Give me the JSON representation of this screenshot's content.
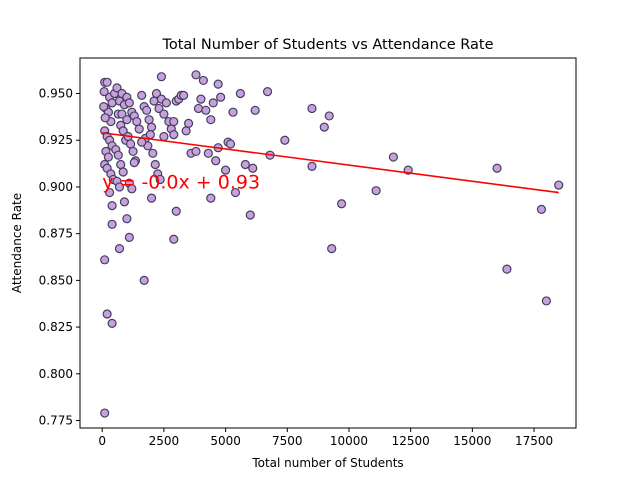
{
  "chart_data": {
    "type": "scatter",
    "title": "Total Number of Students vs Attendance Rate",
    "xlabel": "Total number of Students",
    "ylabel": "Attendance Rate",
    "xlim": [
      -900,
      19200
    ],
    "ylim": [
      0.771,
      0.969
    ],
    "xticks": [
      0,
      2500,
      5000,
      7500,
      10000,
      12500,
      15000,
      17500
    ],
    "xtick_labels": [
      "0",
      "2500",
      "5000",
      "7500",
      "10000",
      "12500",
      "15000",
      "17500"
    ],
    "yticks": [
      0.775,
      0.8,
      0.825,
      0.85,
      0.875,
      0.9,
      0.925,
      0.95
    ],
    "ytick_labels": [
      "0.775",
      "0.800",
      "0.825",
      "0.850",
      "0.875",
      "0.900",
      "0.925",
      "0.950"
    ],
    "grid": false,
    "colors": {
      "marker_fill": "#c9a0dc",
      "marker_edge": "#404060",
      "regression_line": "#ff0000",
      "equation_text": "#ff0000"
    },
    "regression": {
      "equation_label": "y = -0.0x + 0.93",
      "x_range": [
        0,
        18500
      ],
      "y_start": 0.929,
      "y_end": 0.897,
      "label_x": 0,
      "label_y": 0.903
    },
    "points": [
      [
        100,
        0.956
      ],
      [
        200,
        0.956
      ],
      [
        300,
        0.948
      ],
      [
        400,
        0.945
      ],
      [
        150,
        0.942
      ],
      [
        250,
        0.94
      ],
      [
        350,
        0.935
      ],
      [
        100,
        0.93
      ],
      [
        200,
        0.927
      ],
      [
        300,
        0.925
      ],
      [
        400,
        0.922
      ],
      [
        150,
        0.919
      ],
      [
        250,
        0.916
      ],
      [
        100,
        0.912
      ],
      [
        200,
        0.91
      ],
      [
        350,
        0.907
      ],
      [
        450,
        0.904
      ],
      [
        120,
        0.937
      ],
      [
        80,
        0.951
      ],
      [
        60,
        0.943
      ],
      [
        500,
        0.95
      ],
      [
        600,
        0.953
      ],
      [
        700,
        0.946
      ],
      [
        800,
        0.95
      ],
      [
        900,
        0.944
      ],
      [
        650,
        0.939
      ],
      [
        750,
        0.933
      ],
      [
        850,
        0.93
      ],
      [
        950,
        0.925
      ],
      [
        550,
        0.92
      ],
      [
        650,
        0.917
      ],
      [
        750,
        0.912
      ],
      [
        850,
        0.908
      ],
      [
        600,
        0.903
      ],
      [
        700,
        0.9
      ],
      [
        1000,
        0.948
      ],
      [
        1100,
        0.945
      ],
      [
        1200,
        0.94
      ],
      [
        1300,
        0.938
      ],
      [
        1400,
        0.935
      ],
      [
        1500,
        0.931
      ],
      [
        1050,
        0.927
      ],
      [
        1150,
        0.923
      ],
      [
        1250,
        0.919
      ],
      [
        1350,
        0.914
      ],
      [
        1100,
        0.902
      ],
      [
        1200,
        0.899
      ],
      [
        1000,
        0.883
      ],
      [
        1100,
        0.873
      ],
      [
        900,
        0.892
      ],
      [
        1600,
        0.949
      ],
      [
        1700,
        0.943
      ],
      [
        1800,
        0.941
      ],
      [
        1900,
        0.936
      ],
      [
        2000,
        0.932
      ],
      [
        2100,
        0.946
      ],
      [
        2200,
        0.95
      ],
      [
        2300,
        0.942
      ],
      [
        2400,
        0.947
      ],
      [
        2500,
        0.939
      ],
      [
        1750,
        0.926
      ],
      [
        1850,
        0.922
      ],
      [
        1950,
        0.928
      ],
      [
        2050,
        0.918
      ],
      [
        2150,
        0.912
      ],
      [
        2250,
        0.907
      ],
      [
        2350,
        0.904
      ],
      [
        2000,
        0.894
      ],
      [
        1700,
        0.85
      ],
      [
        1600,
        0.924
      ],
      [
        2600,
        0.945
      ],
      [
        2700,
        0.935
      ],
      [
        2800,
        0.931
      ],
      [
        2900,
        0.928
      ],
      [
        3000,
        0.946
      ],
      [
        3100,
        0.947
      ],
      [
        3200,
        0.949
      ],
      [
        3400,
        0.93
      ],
      [
        3500,
        0.934
      ],
      [
        3600,
        0.918
      ],
      [
        3800,
        0.96
      ],
      [
        3900,
        0.942
      ],
      [
        4000,
        0.947
      ],
      [
        4100,
        0.957
      ],
      [
        4200,
        0.941
      ],
      [
        4300,
        0.918
      ],
      [
        4400,
        0.936
      ],
      [
        4500,
        0.945
      ],
      [
        4600,
        0.914
      ],
      [
        4700,
        0.955
      ],
      [
        4800,
        0.948
      ],
      [
        5000,
        0.909
      ],
      [
        5100,
        0.924
      ],
      [
        5200,
        0.923
      ],
      [
        5300,
        0.94
      ],
      [
        5400,
        0.897
      ],
      [
        5600,
        0.95
      ],
      [
        5800,
        0.912
      ],
      [
        6000,
        0.885
      ],
      [
        6100,
        0.91
      ],
      [
        6200,
        0.941
      ],
      [
        6700,
        0.951
      ],
      [
        6800,
        0.917
      ],
      [
        7400,
        0.925
      ],
      [
        8500,
        0.942
      ],
      [
        8500,
        0.911
      ],
      [
        9000,
        0.932
      ],
      [
        9200,
        0.938
      ],
      [
        9300,
        0.867
      ],
      [
        9700,
        0.891
      ],
      [
        11100,
        0.898
      ],
      [
        11800,
        0.916
      ],
      [
        12400,
        0.909
      ],
      [
        16000,
        0.91
      ],
      [
        16400,
        0.856
      ],
      [
        17800,
        0.888
      ],
      [
        18000,
        0.839
      ],
      [
        18500,
        0.901
      ],
      [
        2900,
        0.872
      ],
      [
        3000,
        0.887
      ],
      [
        4400,
        0.894
      ],
      [
        4700,
        0.921
      ],
      [
        3800,
        0.919
      ],
      [
        2400,
        0.959
      ],
      [
        700,
        0.867
      ],
      [
        400,
        0.88
      ],
      [
        300,
        0.897
      ],
      [
        400,
        0.89
      ],
      [
        100,
        0.861
      ],
      [
        200,
        0.832
      ],
      [
        400,
        0.827
      ],
      [
        100,
        0.779
      ],
      [
        2900,
        0.935
      ],
      [
        3300,
        0.949
      ],
      [
        2500,
        0.927
      ],
      [
        1300,
        0.913
      ],
      [
        800,
        0.939
      ],
      [
        1000,
        0.936
      ]
    ]
  }
}
